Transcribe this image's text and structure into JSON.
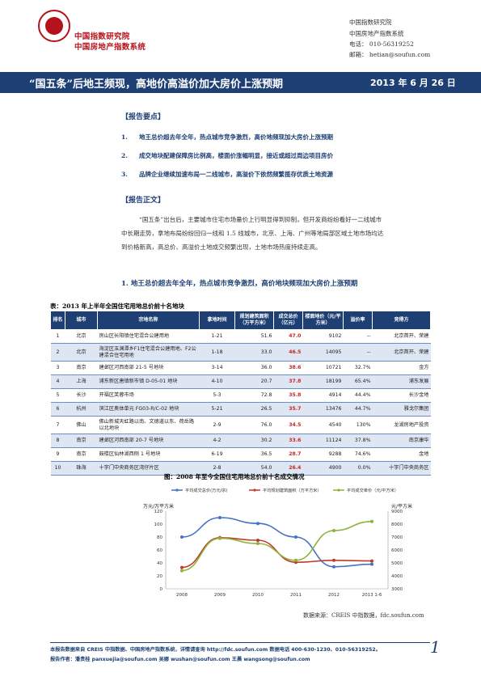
{
  "header": {
    "org_line1": "中国指数研究院",
    "org_line2": "中国房地产指数系统",
    "contact_org1": "中国指数研究院",
    "contact_org2": "中国房地产指数系统",
    "phone": "电话： 010-56319252",
    "email": "邮箱： hetian@soufun.com"
  },
  "title": {
    "text": "“国五条”后地王频现，高地价高溢价加大房价上涨预期",
    "date": "2013 年 6 月 26 日"
  },
  "summary": {
    "heading": "【报告要点】",
    "points": [
      {
        "num": "1.",
        "text": "地王总价超去年全年，热点城市竞争激烈，高价地频现加大房价上涨预期"
      },
      {
        "num": "2.",
        "text": "成交地块配建保障房比例高，楼面价涨幅明显，接近或超过周边项目房价"
      },
      {
        "num": "3.",
        "text": "品牌企业继续加速布局一二线城市，高溢价下依然频繁揽存优质土地资源"
      }
    ]
  },
  "body": {
    "heading": "【报告正文】",
    "para_line1": "“国五条”出台后，主要城市住宅市场量价上行明显得到抑制，但开发商纷纷看好一二线城市",
    "para_line2": "中长期走势，拿地布局纷纷回归一线和 1.5 线城市，北京、上海、广州等地局部区域土地市场均达",
    "para_line3": "到价格新高，高总价、高溢价土地成交频繁出现，土地市场热度持续走高。",
    "sub_heading": "1.   地王总价超去年全年，热点城市竞争激烈，高价地块频现加大房价上涨预期"
  },
  "table": {
    "caption": "表：2013 年上半年全国住宅用地总价前十名地块",
    "headers": [
      "排名",
      "城市",
      "宗地名称",
      "拿地时间",
      "规划建筑面积（万平方米）",
      "成交总价（亿元）",
      "楼面地价（元/平方米）",
      "溢价率",
      "竞得方"
    ],
    "rows": [
      {
        "rank": "1",
        "city": "北京",
        "name": "房山区长阳镇住宅混合公建用地",
        "date": "1-21",
        "area": "51.6",
        "total": "47.0",
        "floor_price": "9102",
        "premium": "--",
        "buyer": "北京首开、荣建"
      },
      {
        "rank": "2",
        "city": "北京",
        "name": "海淀区玉渊潭乡F1住宅混合公建用地、F2公建混合住宅用地",
        "date": "1-18",
        "area": "33.0",
        "total": "46.5",
        "floor_price": "14095",
        "premium": "--",
        "buyer": "北京首开、荣建"
      },
      {
        "rank": "3",
        "city": "南京",
        "name": "建邺区河西南部 21-5 号地块",
        "date": "3-14",
        "area": "36.0",
        "total": "38.6",
        "floor_price": "10721",
        "premium": "32.7%",
        "buyer": "金方"
      },
      {
        "rank": "4",
        "city": "上海",
        "name": "浦东新区唐镇新市镇 D-05-01 地块",
        "date": "4-10",
        "area": "20.7",
        "total": "37.8",
        "floor_price": "18199",
        "premium": "65.4%",
        "buyer": "浦东发展"
      },
      {
        "rank": "5",
        "city": "长沙",
        "name": "开福区芙蓉市场",
        "date": "5-3",
        "area": "72.8",
        "total": "35.8",
        "floor_price": "4914",
        "premium": "44.4%",
        "buyer": "长沙金地"
      },
      {
        "rank": "6",
        "city": "杭州",
        "name": "滨江区奥体单元 FG03-R/C-02 地块",
        "date": "5-21",
        "area": "26.5",
        "total": "35.7",
        "floor_price": "13476",
        "premium": "44.7%",
        "buyer": "雅戈尔集团"
      },
      {
        "rank": "7",
        "city": "佛山",
        "name": "佛山新城天虹路以南、文德道以东、荷岳路以北地块",
        "date": "2-9",
        "area": "76.0",
        "total": "34.5",
        "floor_price": "4540",
        "premium": "130%",
        "buyer": "龙湖房地产投资"
      },
      {
        "rank": "8",
        "city": "南京",
        "name": "建邺区河西南部 20-7 号地块",
        "date": "4-2",
        "area": "30.2",
        "total": "33.6",
        "floor_price": "11124",
        "premium": "37.8%",
        "buyer": "南京康华"
      },
      {
        "rank": "9",
        "city": "南京",
        "name": "鼓楼区仙林湖西侧 1 号地块",
        "date": "6-19",
        "area": "36.5",
        "total": "28.7",
        "floor_price": "9288",
        "premium": "74.6%",
        "buyer": "金地"
      },
      {
        "rank": "10",
        "city": "珠海",
        "name": "十字门中央商务区湾仔片区",
        "date": "2-8",
        "area": "54.0",
        "total": "26.4",
        "floor_price": "4900",
        "premium": "0.0%",
        "buyer": "十字门中央商务区"
      }
    ]
  },
  "chart_data": {
    "type": "line",
    "title": "图：2008 年至今全国住宅用地总价前十名成交情况",
    "x": [
      "2008",
      "2009",
      "2010",
      "2011",
      "2012",
      "2013 1-6"
    ],
    "left_axis_label": "万元/万平方米",
    "right_axis_label": "元/平方米",
    "left_ylim": [
      0,
      120
    ],
    "left_ticks": [
      "0",
      "20",
      "40",
      "60",
      "80",
      "100",
      "120"
    ],
    "right_ylim": [
      3000,
      9000
    ],
    "right_ticks": [
      "3000",
      "4000",
      "5000",
      "6000",
      "7000",
      "8000",
      "9000"
    ],
    "series": [
      {
        "name": "平均成交总价(万元/宗)",
        "axis": "left",
        "color": "#4472c4",
        "values": [
          80,
          110,
          101,
          80,
          34,
          38
        ]
      },
      {
        "name": "平均规划建筑面积（万平方米）",
        "axis": "left",
        "color": "#c0392b",
        "values": [
          33,
          79,
          75,
          41,
          44,
          43
        ]
      },
      {
        "name": "平均成交单价（元/平方米）",
        "axis": "right",
        "color": "#8db33a",
        "values": [
          4400,
          6900,
          6500,
          5200,
          7500,
          8200
        ]
      }
    ],
    "grid": false,
    "legend": "top"
  },
  "source": "数据来源：CREIS 中指数据，fdc.soufun.com",
  "footer": {
    "line1": "本报告数据来自 CREIS 中指数据、中国房地产指数系统，详情请查询 http://fdc.soufun.com 数据电话 400-630-1230、010-56319252。",
    "line2": "报告作者：潘贵桂 panxuejia@soufun.com   吴娜 wushan@soufun.com   王晨 wangsong@soufun.com",
    "page": "1"
  }
}
